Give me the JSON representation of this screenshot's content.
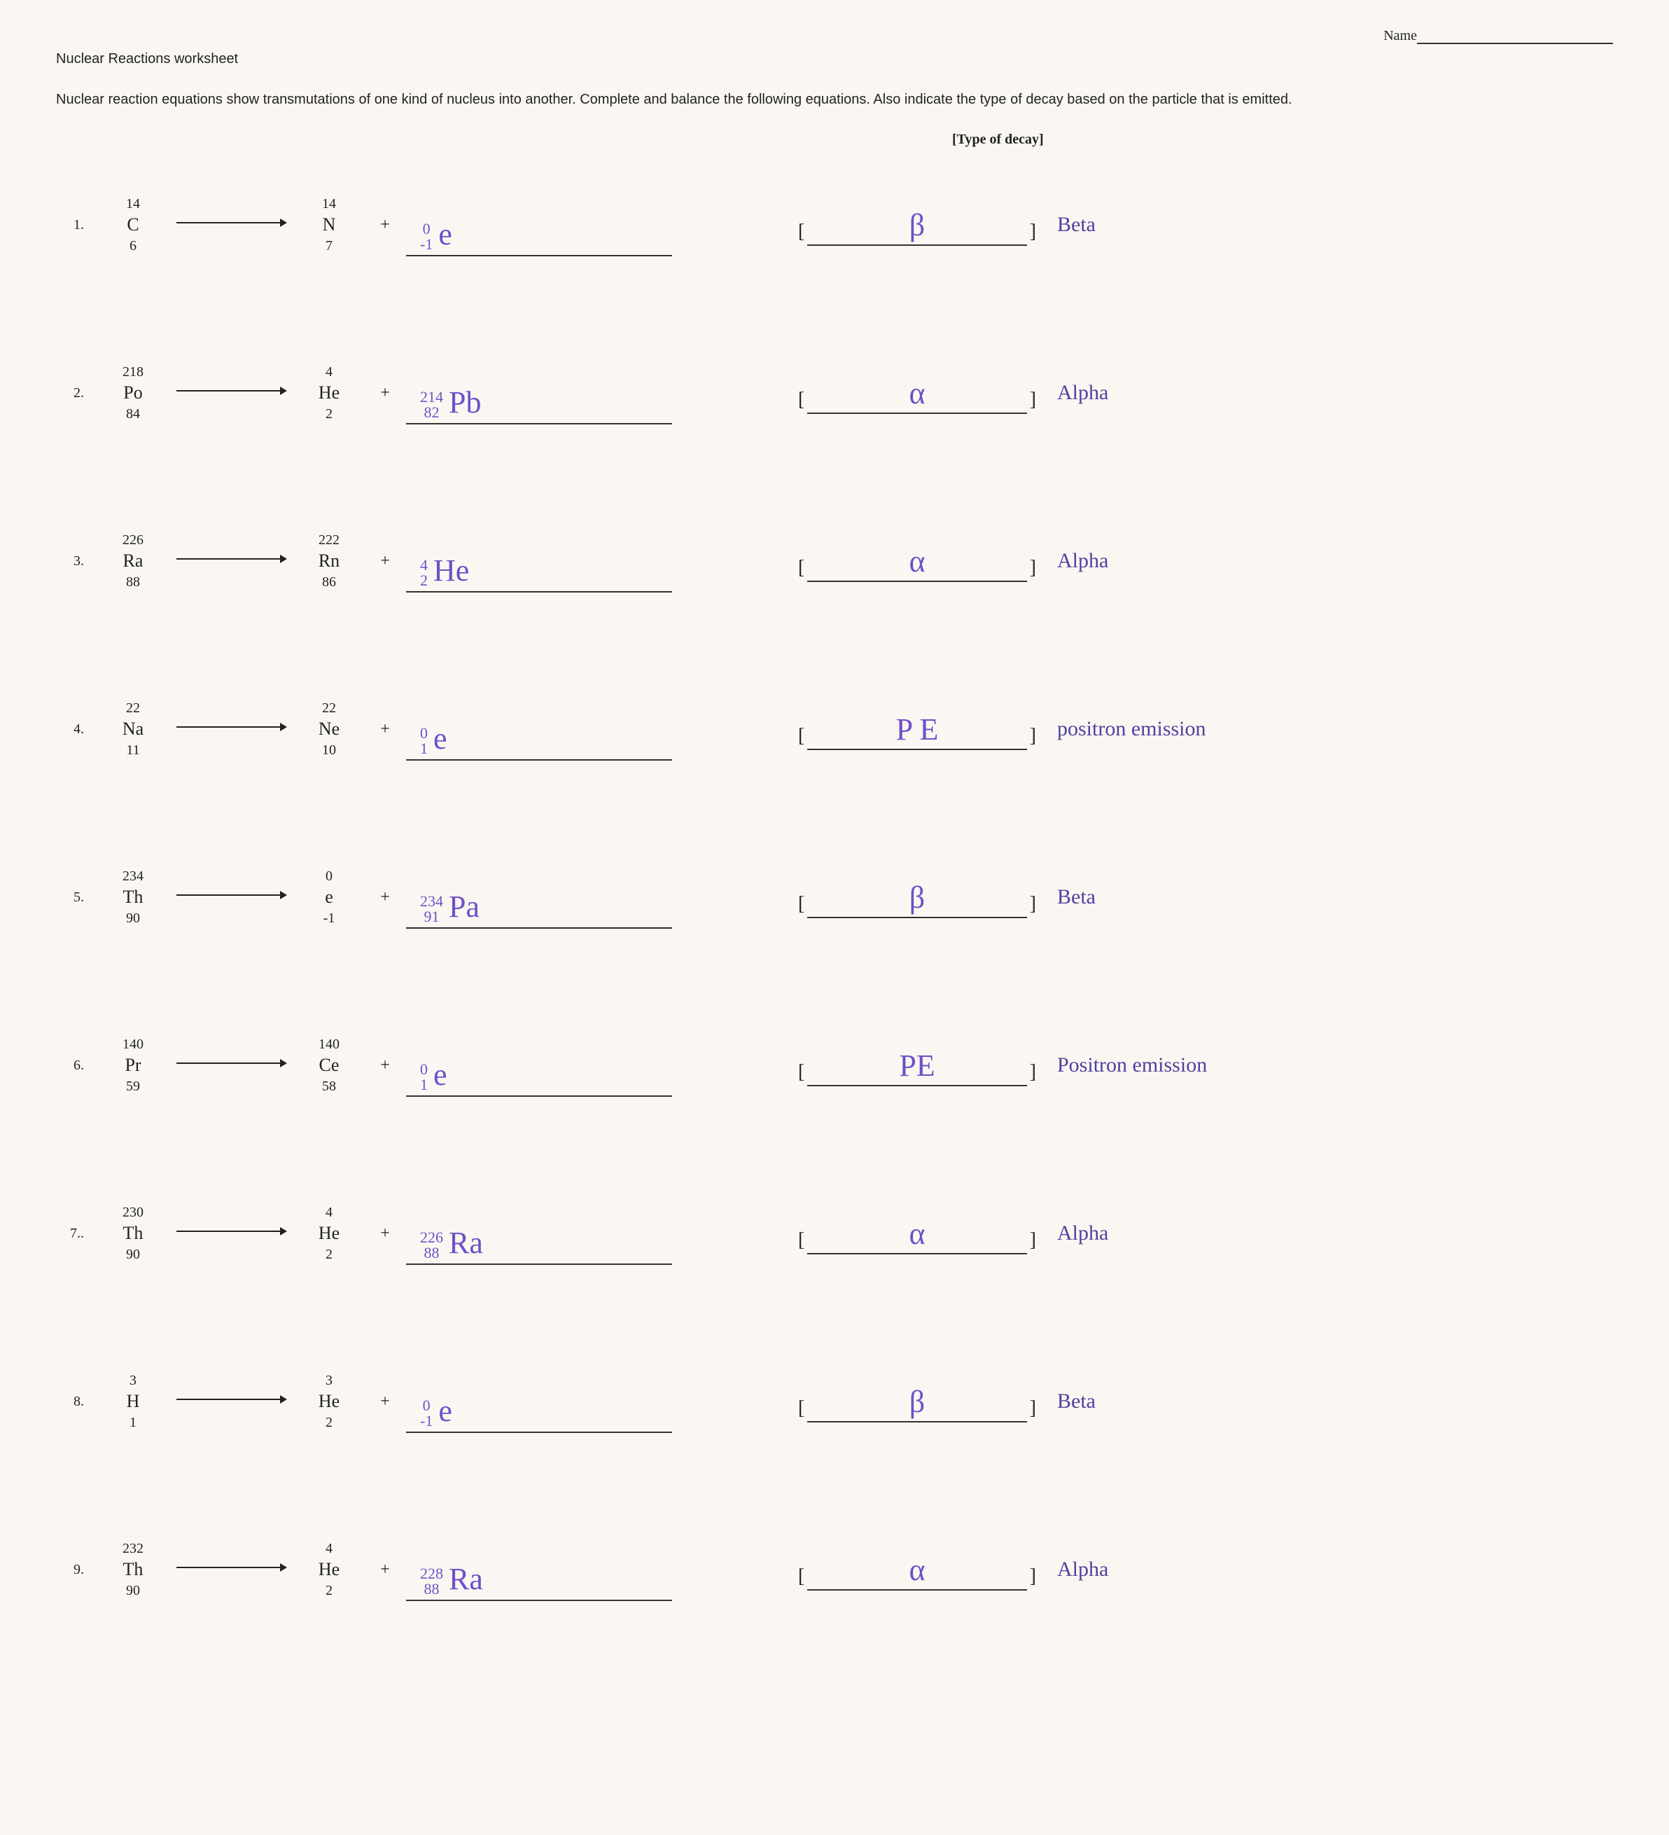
{
  "header": {
    "name_label": "Name",
    "title": "Nuclear Reactions worksheet",
    "intro": "Nuclear reaction equations show transmutations of one kind of nucleus into another. Complete and balance the following equations.  Also indicate the type of decay based on the particle that is emitted.",
    "decay_header": "[Type of decay]"
  },
  "colors": {
    "handwriting": "#7050c8",
    "decay_word": "#5040a0",
    "text": "#222222",
    "background": "#faf7f2",
    "line": "#333333"
  },
  "fonts": {
    "body": "Arial",
    "serif": "Times New Roman",
    "handwriting": "Comic Sans MS"
  },
  "rows": [
    {
      "num": "1.",
      "left": {
        "mass": "14",
        "sym": "C",
        "z": "6"
      },
      "right": {
        "mass": "14",
        "sym": "N",
        "z": "7"
      },
      "answer": {
        "top": "0",
        "bottom": "-1",
        "sym": "e"
      },
      "decay_symbol": "β",
      "decay_word": "Beta"
    },
    {
      "num": "2.",
      "left": {
        "mass": "218",
        "sym": "Po",
        "z": "84"
      },
      "right": {
        "mass": "4",
        "sym": "He",
        "z": "2"
      },
      "answer": {
        "top": "214",
        "bottom": "82",
        "sym": "Pb"
      },
      "decay_symbol": "α",
      "decay_word": "Alpha"
    },
    {
      "num": "3.",
      "left": {
        "mass": "226",
        "sym": "Ra",
        "z": "88"
      },
      "right": {
        "mass": "222",
        "sym": "Rn",
        "z": "86"
      },
      "answer": {
        "top": "4",
        "bottom": "2",
        "sym": "He"
      },
      "decay_symbol": "α",
      "decay_word": "Alpha"
    },
    {
      "num": "4.",
      "left": {
        "mass": "22",
        "sym": "Na",
        "z": "11"
      },
      "right": {
        "mass": "22",
        "sym": "Ne",
        "z": "10"
      },
      "answer": {
        "top": "0",
        "bottom": "1",
        "sym": "e"
      },
      "decay_symbol": "P E",
      "decay_word": "positron emission"
    },
    {
      "num": "5.",
      "left": {
        "mass": "234",
        "sym": "Th",
        "z": "90"
      },
      "right": {
        "mass": "0",
        "sym": "e",
        "z": "-1"
      },
      "answer": {
        "top": "234",
        "bottom": "91",
        "sym": "Pa"
      },
      "decay_symbol": "β",
      "decay_word": "Beta"
    },
    {
      "num": "6.",
      "left": {
        "mass": "140",
        "sym": "Pr",
        "z": "59"
      },
      "right": {
        "mass": "140",
        "sym": "Ce",
        "z": "58"
      },
      "answer": {
        "top": "0",
        "bottom": "1",
        "sym": "e"
      },
      "decay_symbol": "PE",
      "decay_word": "Positron emission"
    },
    {
      "num": "7..",
      "left": {
        "mass": "230",
        "sym": "Th",
        "z": "90"
      },
      "right": {
        "mass": "4",
        "sym": "He",
        "z": "2"
      },
      "answer": {
        "top": "226",
        "bottom": "88",
        "sym": "Ra"
      },
      "decay_symbol": "α",
      "decay_word": "Alpha"
    },
    {
      "num": "8.",
      "left": {
        "mass": "3",
        "sym": "H",
        "z": "1"
      },
      "right": {
        "mass": "3",
        "sym": "He",
        "z": "2"
      },
      "answer": {
        "top": "0",
        "bottom": "-1",
        "sym": "e"
      },
      "decay_symbol": "β",
      "decay_word": "Beta"
    },
    {
      "num": "9.",
      "left": {
        "mass": "232",
        "sym": "Th",
        "z": "90"
      },
      "right": {
        "mass": "4",
        "sym": "He",
        "z": "2"
      },
      "answer": {
        "top": "228",
        "bottom": "88",
        "sym": "Ra"
      },
      "decay_symbol": "α",
      "decay_word": "Alpha"
    }
  ]
}
